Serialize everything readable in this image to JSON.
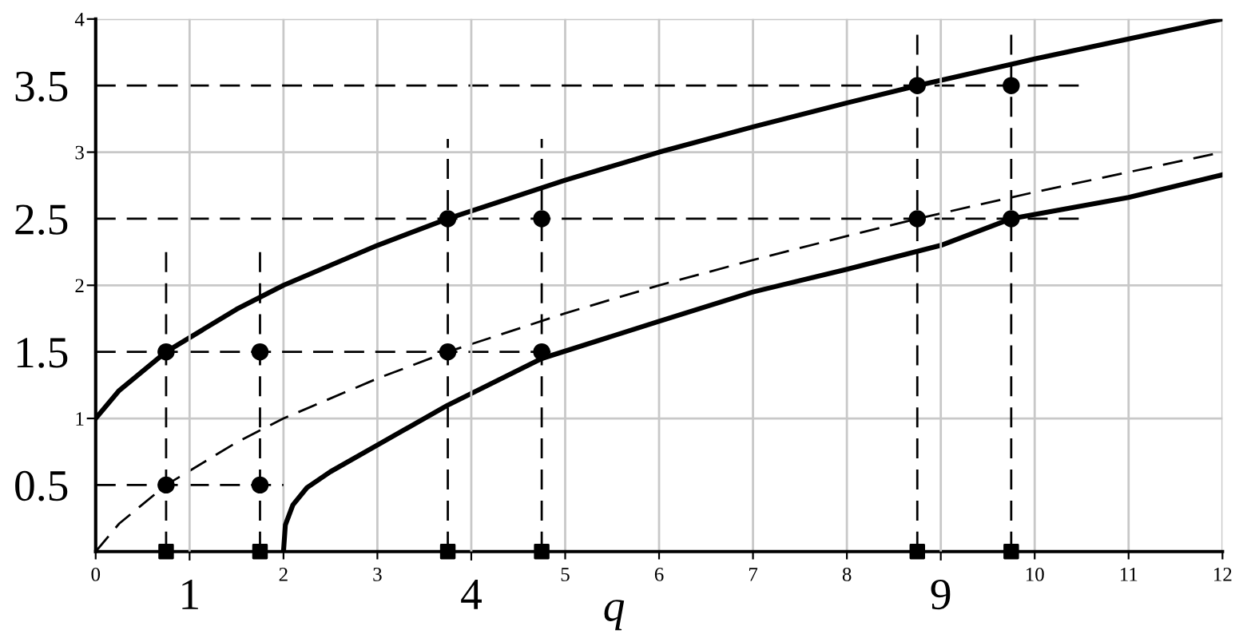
{
  "chart_data": {
    "type": "line",
    "xlabel": "q",
    "xlim": [
      0,
      12
    ],
    "ylim": [
      0,
      4
    ],
    "xticks": [
      0,
      2,
      3,
      5,
      6,
      7,
      8,
      10,
      11,
      12
    ],
    "yticks": [
      1,
      2,
      3,
      4
    ],
    "y2lim": [
      0,
      4
    ],
    "y2ticks": [
      0.5,
      1.5,
      2.5,
      3.5
    ],
    "x2lim": [
      0,
      12
    ],
    "x2ticks": [
      1,
      4,
      9
    ],
    "grid": true,
    "legend": false,
    "series": [
      {
        "color": "#000000",
        "line_style": "solid",
        "x": [
          0,
          0.25,
          0.75,
          1.5,
          2,
          3,
          3.75,
          5,
          6,
          7,
          8,
          8.75,
          10,
          11,
          12
        ],
        "values": [
          1,
          1.21,
          1.5,
          1.82,
          2.0,
          2.3,
          2.5,
          2.79,
          3.0,
          3.19,
          3.37,
          3.5,
          3.7,
          3.85,
          4.0
        ]
      },
      {
        "color": "#000000",
        "line_style": "dashed",
        "x": [
          0,
          0.25,
          0.75,
          1.5,
          2,
          3,
          3.75,
          5,
          6,
          7,
          8,
          8.75,
          10,
          11,
          12
        ],
        "values": [
          0,
          0.21,
          0.5,
          0.82,
          1.0,
          1.3,
          1.5,
          1.79,
          2.0,
          2.19,
          2.37,
          2.5,
          2.7,
          2.85,
          3.0
        ]
      },
      {
        "color": "#000000",
        "line_style": "solid",
        "x": [
          2,
          2.02,
          2.1,
          2.25,
          2.5,
          3,
          3.75,
          4.75,
          6,
          7,
          8,
          9,
          9.75,
          11,
          12
        ],
        "values": [
          0,
          0.2,
          0.35,
          0.48,
          0.6,
          0.8,
          1.1,
          1.45,
          1.73,
          1.95,
          2.12,
          2.3,
          2.5,
          2.66,
          2.83
        ]
      },
      {
        "type": "line",
        "color": "#000000",
        "line_style": "dashed",
        "x": [
          0,
          10.5
        ],
        "values": [
          3.5,
          3.5
        ]
      },
      {
        "type": "line",
        "color": "#000000",
        "line_style": "dashed",
        "x": [
          0,
          10.5
        ],
        "values": [
          2.5,
          2.5
        ]
      },
      {
        "type": "line",
        "color": "#000000",
        "line_style": "dashed",
        "x": [
          0,
          5
        ],
        "values": [
          1.5,
          1.5
        ]
      },
      {
        "type": "line",
        "color": "#000000",
        "line_style": "dashed",
        "x": [
          0,
          2
        ],
        "values": [
          0.5,
          0.5
        ]
      },
      {
        "type": "line",
        "color": "#000000",
        "line_style": "dashed",
        "x": [
          0.75,
          0.75
        ],
        "values": [
          0,
          2.25
        ]
      },
      {
        "type": "line",
        "color": "#000000",
        "line_style": "dashed",
        "x": [
          1.75,
          1.75
        ],
        "values": [
          0,
          2.25
        ]
      },
      {
        "type": "line",
        "color": "#000000",
        "line_style": "dashed",
        "x": [
          3.75,
          3.75
        ],
        "values": [
          0,
          3.1
        ]
      },
      {
        "type": "line",
        "color": "#000000",
        "line_style": "dashed",
        "x": [
          4.75,
          4.75
        ],
        "values": [
          0,
          3.1
        ]
      },
      {
        "type": "line",
        "color": "#000000",
        "line_style": "dashed",
        "x": [
          8.75,
          8.75
        ],
        "values": [
          0,
          3.9
        ]
      },
      {
        "type": "line",
        "color": "#000000",
        "line_style": "dashed",
        "x": [
          9.75,
          9.75
        ],
        "values": [
          0,
          3.9
        ]
      },
      {
        "type": "scatter",
        "color": "#000000",
        "marker": "circle",
        "x": [
          0.75,
          1.75,
          0.75,
          1.75,
          3.75,
          4.75,
          3.75,
          4.75,
          8.75,
          9.75,
          8.75,
          9.75
        ],
        "values": [
          0.5,
          0.5,
          1.5,
          1.5,
          1.5,
          1.5,
          2.5,
          2.5,
          2.5,
          2.5,
          3.5,
          3.5
        ]
      },
      {
        "type": "scatter",
        "color": "#000000",
        "marker": "square",
        "x": [
          0.75,
          1.75,
          3.75,
          4.75,
          8.75,
          9.75
        ],
        "values": [
          0,
          0,
          0,
          0,
          0,
          0
        ]
      }
    ]
  }
}
